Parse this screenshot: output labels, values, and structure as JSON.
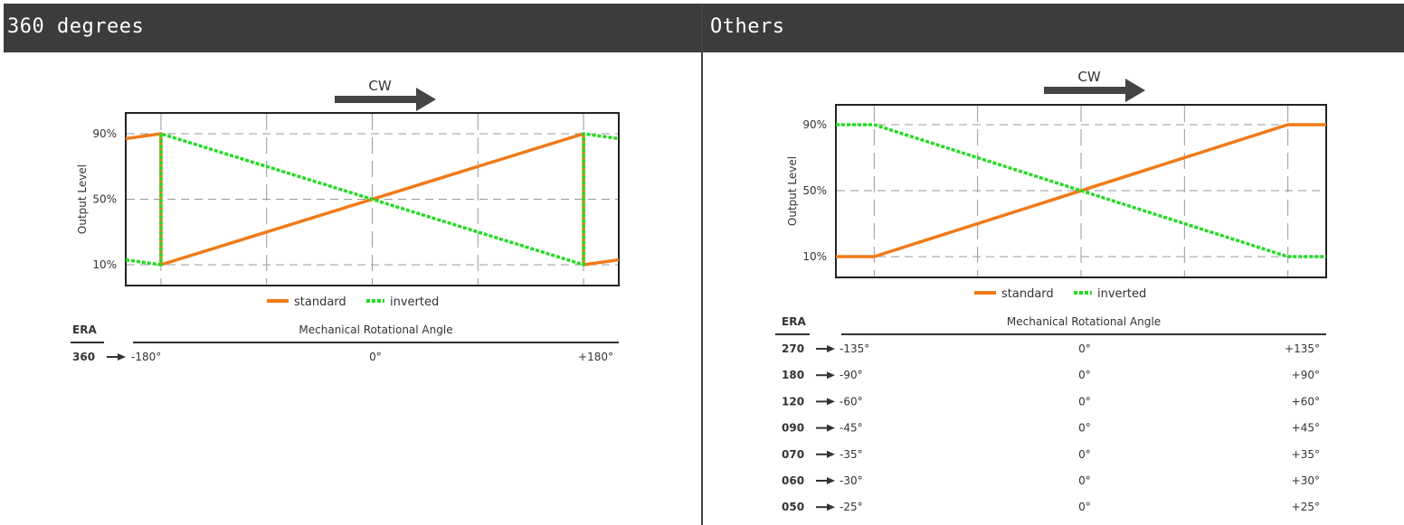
{
  "panels": {
    "left": {
      "title": "360 degrees"
    },
    "right": {
      "title": "Others"
    }
  },
  "colors": {
    "standard": "#f07a17",
    "inverted": "#22dd22",
    "header": "#3c3c3c"
  },
  "chart_data": [
    {
      "type": "line",
      "title": "",
      "direction_label": "CW",
      "ylabel": "Output Level",
      "xlabel": "Mechanical Rotational Angle",
      "y_ticks": [
        "90%",
        "50%",
        "10%"
      ],
      "ylim": [
        0,
        100
      ],
      "xlim": [
        -210,
        210
      ],
      "grid": true,
      "legend": [
        "standard",
        "inverted"
      ],
      "legend_position": "bottom-center",
      "series": [
        {
          "name": "standard",
          "x": [
            -210,
            -180,
            -180,
            180,
            180,
            210
          ],
          "y": [
            87,
            90,
            10,
            90,
            10,
            13
          ]
        },
        {
          "name": "inverted",
          "x": [
            -210,
            -180,
            -180,
            180,
            180,
            210
          ],
          "y": [
            13,
            10,
            90,
            10,
            90,
            87
          ]
        }
      ],
      "era_header": "ERA",
      "era_rows": [
        {
          "era": "360",
          "min": "-180°",
          "mid": "0°",
          "max": "+180°"
        }
      ]
    },
    {
      "type": "line",
      "title": "",
      "direction_label": "CW",
      "ylabel": "Output Level",
      "xlabel": "Mechanical Rotational Angle",
      "y_ticks": [
        "90%",
        "50%",
        "10%"
      ],
      "ylim": [
        0,
        100
      ],
      "xlim": [
        -160,
        160
      ],
      "grid": true,
      "legend": [
        "standard",
        "inverted"
      ],
      "legend_position": "bottom-center",
      "series": [
        {
          "name": "standard",
          "x": [
            -160,
            -135,
            135,
            160
          ],
          "y": [
            10,
            10,
            90,
            90
          ]
        },
        {
          "name": "inverted",
          "x": [
            -160,
            -135,
            135,
            160
          ],
          "y": [
            90,
            90,
            10,
            10
          ]
        }
      ],
      "era_header": "ERA",
      "era_rows": [
        {
          "era": "270",
          "min": "-135°",
          "mid": "0°",
          "max": "+135°"
        },
        {
          "era": "180",
          "min": "-90°",
          "mid": "0°",
          "max": "+90°"
        },
        {
          "era": "120",
          "min": "-60°",
          "mid": "0°",
          "max": "+60°"
        },
        {
          "era": "090",
          "min": "-45°",
          "mid": "0°",
          "max": "+45°"
        },
        {
          "era": "070",
          "min": "-35°",
          "mid": "0°",
          "max": "+35°"
        },
        {
          "era": "060",
          "min": "-30°",
          "mid": "0°",
          "max": "+30°"
        },
        {
          "era": "050",
          "min": "-25°",
          "mid": "0°",
          "max": "+25°"
        }
      ]
    }
  ]
}
